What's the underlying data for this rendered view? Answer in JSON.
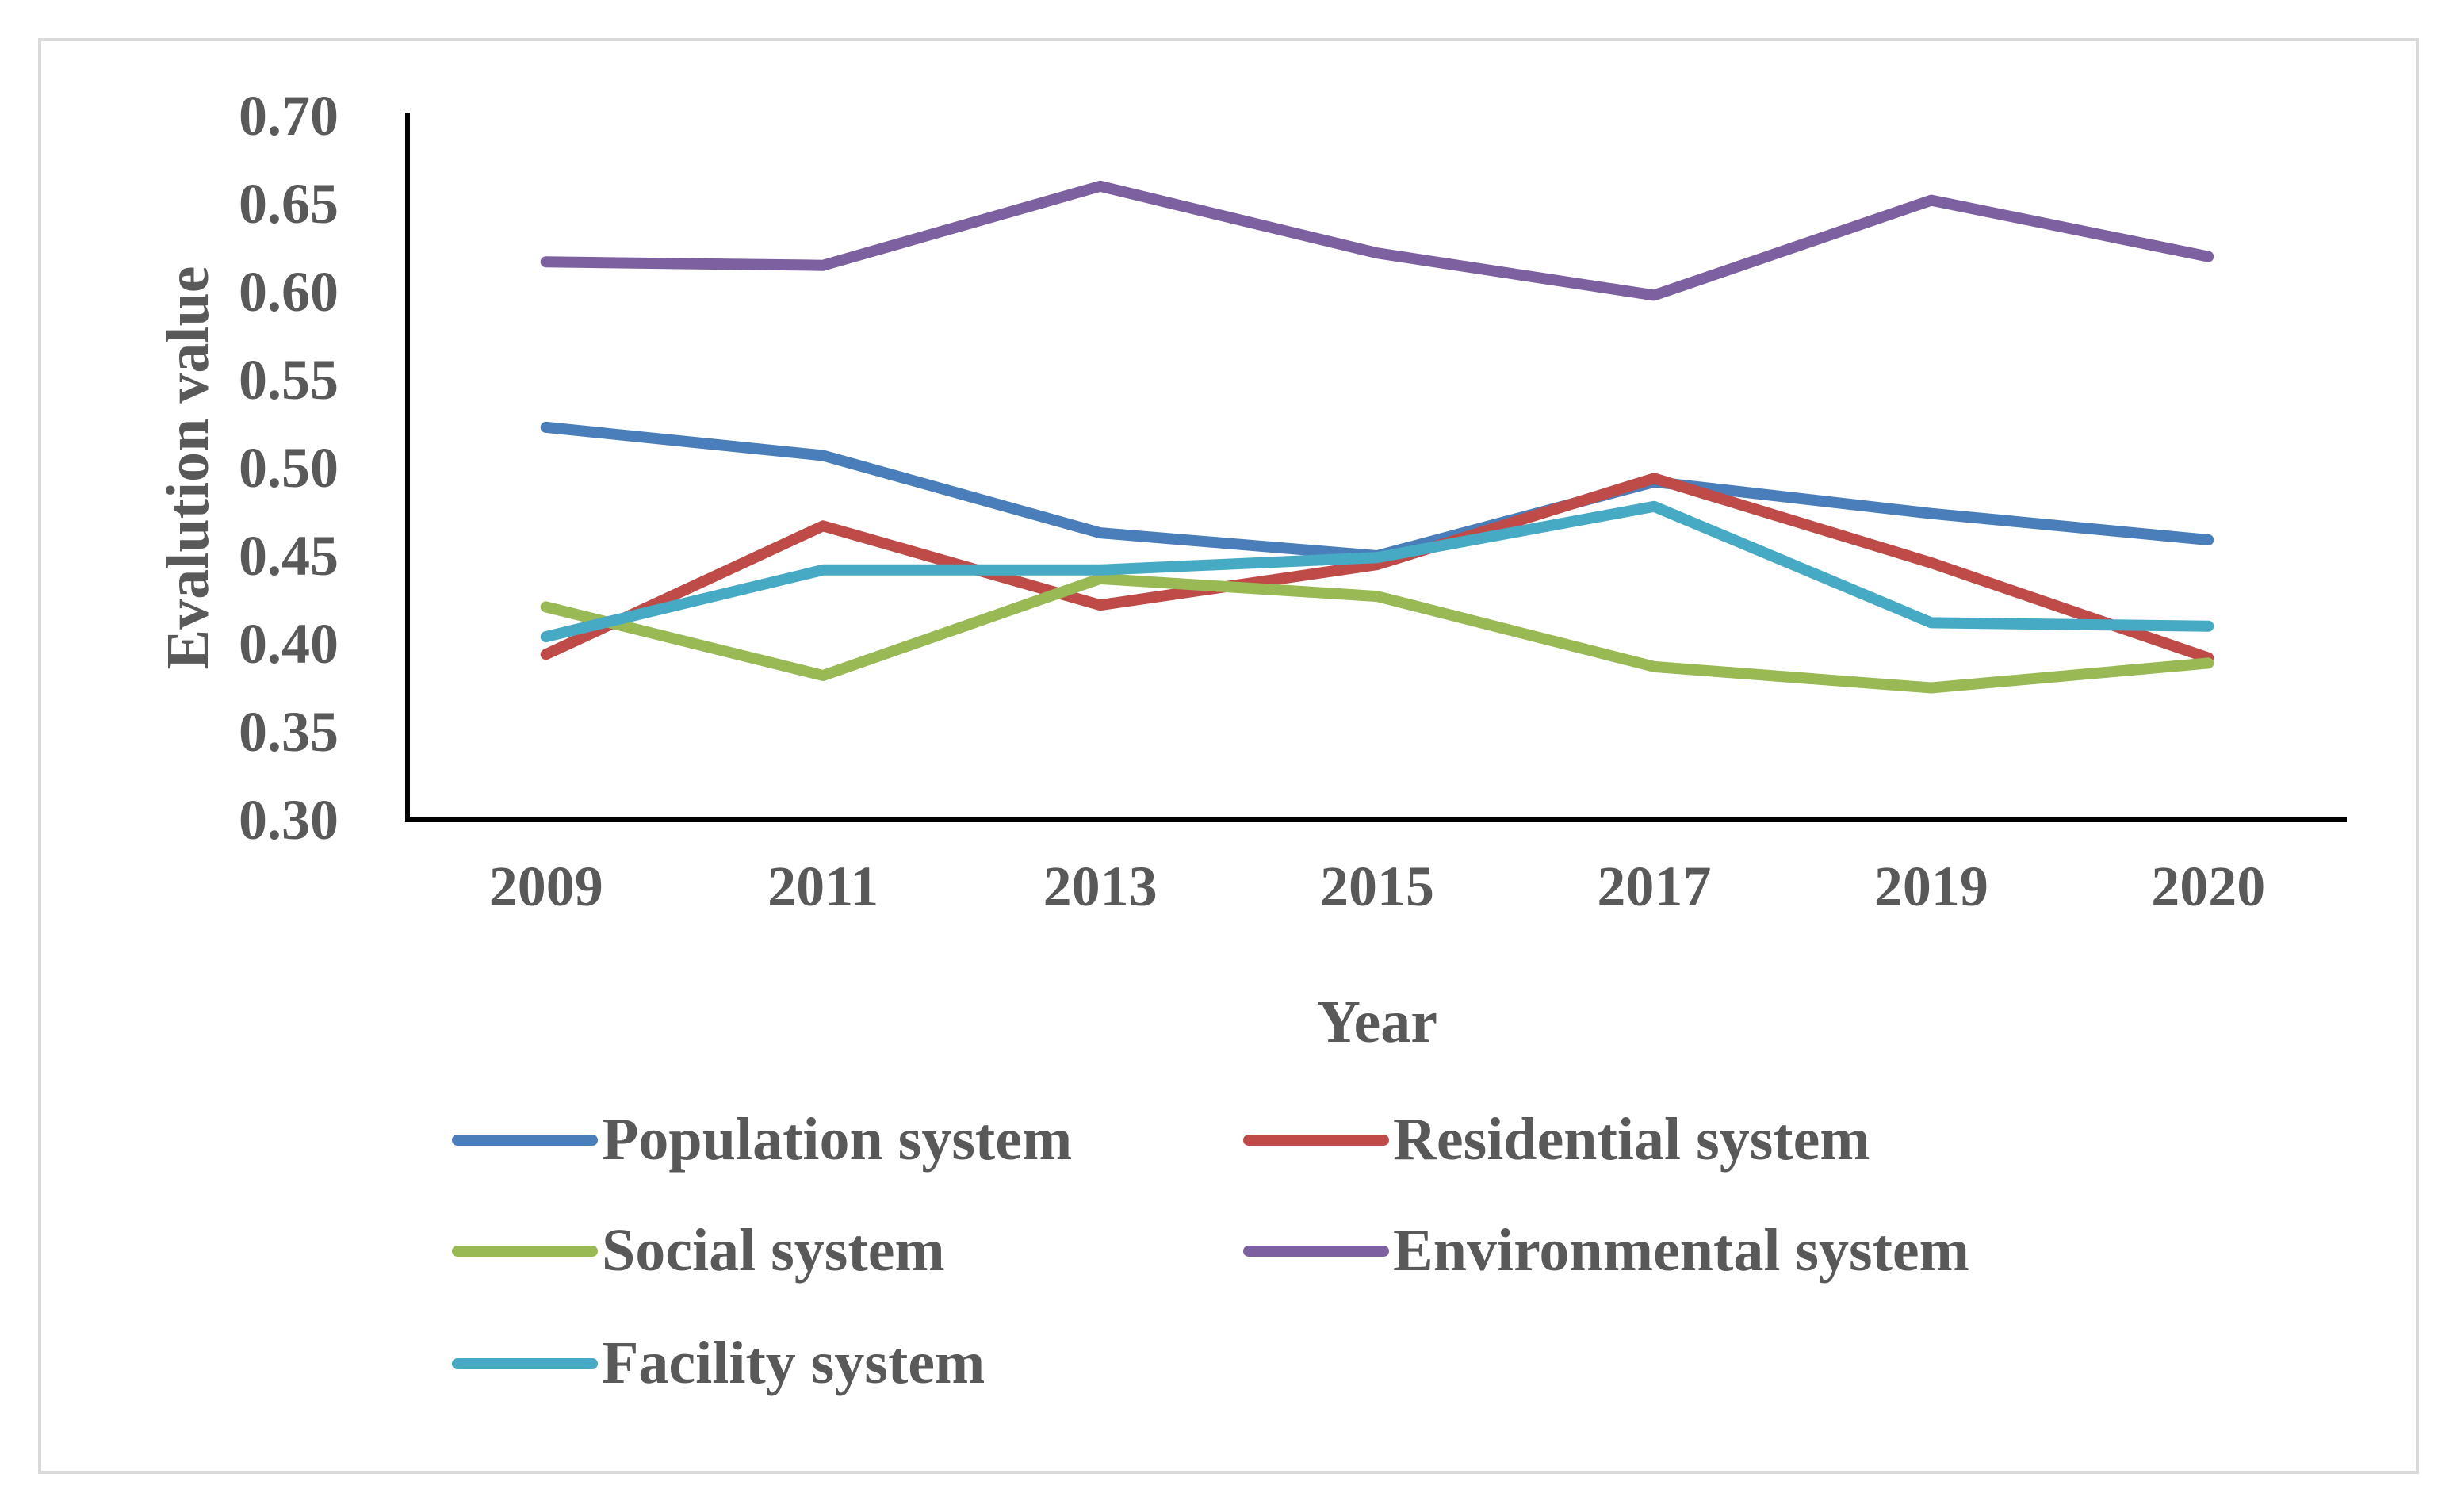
{
  "chart_data": {
    "type": "line",
    "title": "",
    "xlabel": "Year",
    "ylabel": "Evalution  value",
    "ylim": [
      0.3,
      0.7
    ],
    "ytick_step": 0.05,
    "yticks": [
      "0.30",
      "0.35",
      "0.40",
      "0.45",
      "0.50",
      "0.55",
      "0.60",
      "0.65",
      "0.70"
    ],
    "categories": [
      "2009",
      "2011",
      "2013",
      "2015",
      "2017",
      "2019",
      "2020"
    ],
    "grid": false,
    "legend_position": "bottom",
    "series": [
      {
        "name": "Population system",
        "color": "#4a7ebb",
        "values": [
          0.523,
          0.507,
          0.463,
          0.45,
          0.492,
          0.474,
          0.459
        ]
      },
      {
        "name": "Residential system",
        "color": "#be4b48",
        "values": [
          0.394,
          0.467,
          0.422,
          0.445,
          0.494,
          0.446,
          0.392
        ]
      },
      {
        "name": "Social system",
        "color": "#98b954",
        "values": [
          0.421,
          0.382,
          0.437,
          0.427,
          0.387,
          0.375,
          0.389
        ]
      },
      {
        "name": "Environmental system",
        "color": "#7d60a0",
        "values": [
          0.617,
          0.615,
          0.66,
          0.622,
          0.598,
          0.652,
          0.62
        ]
      },
      {
        "name": "Facility system",
        "color": "#46aac5",
        "values": [
          0.404,
          0.442,
          0.442,
          0.449,
          0.478,
          0.412,
          0.41
        ]
      }
    ]
  }
}
